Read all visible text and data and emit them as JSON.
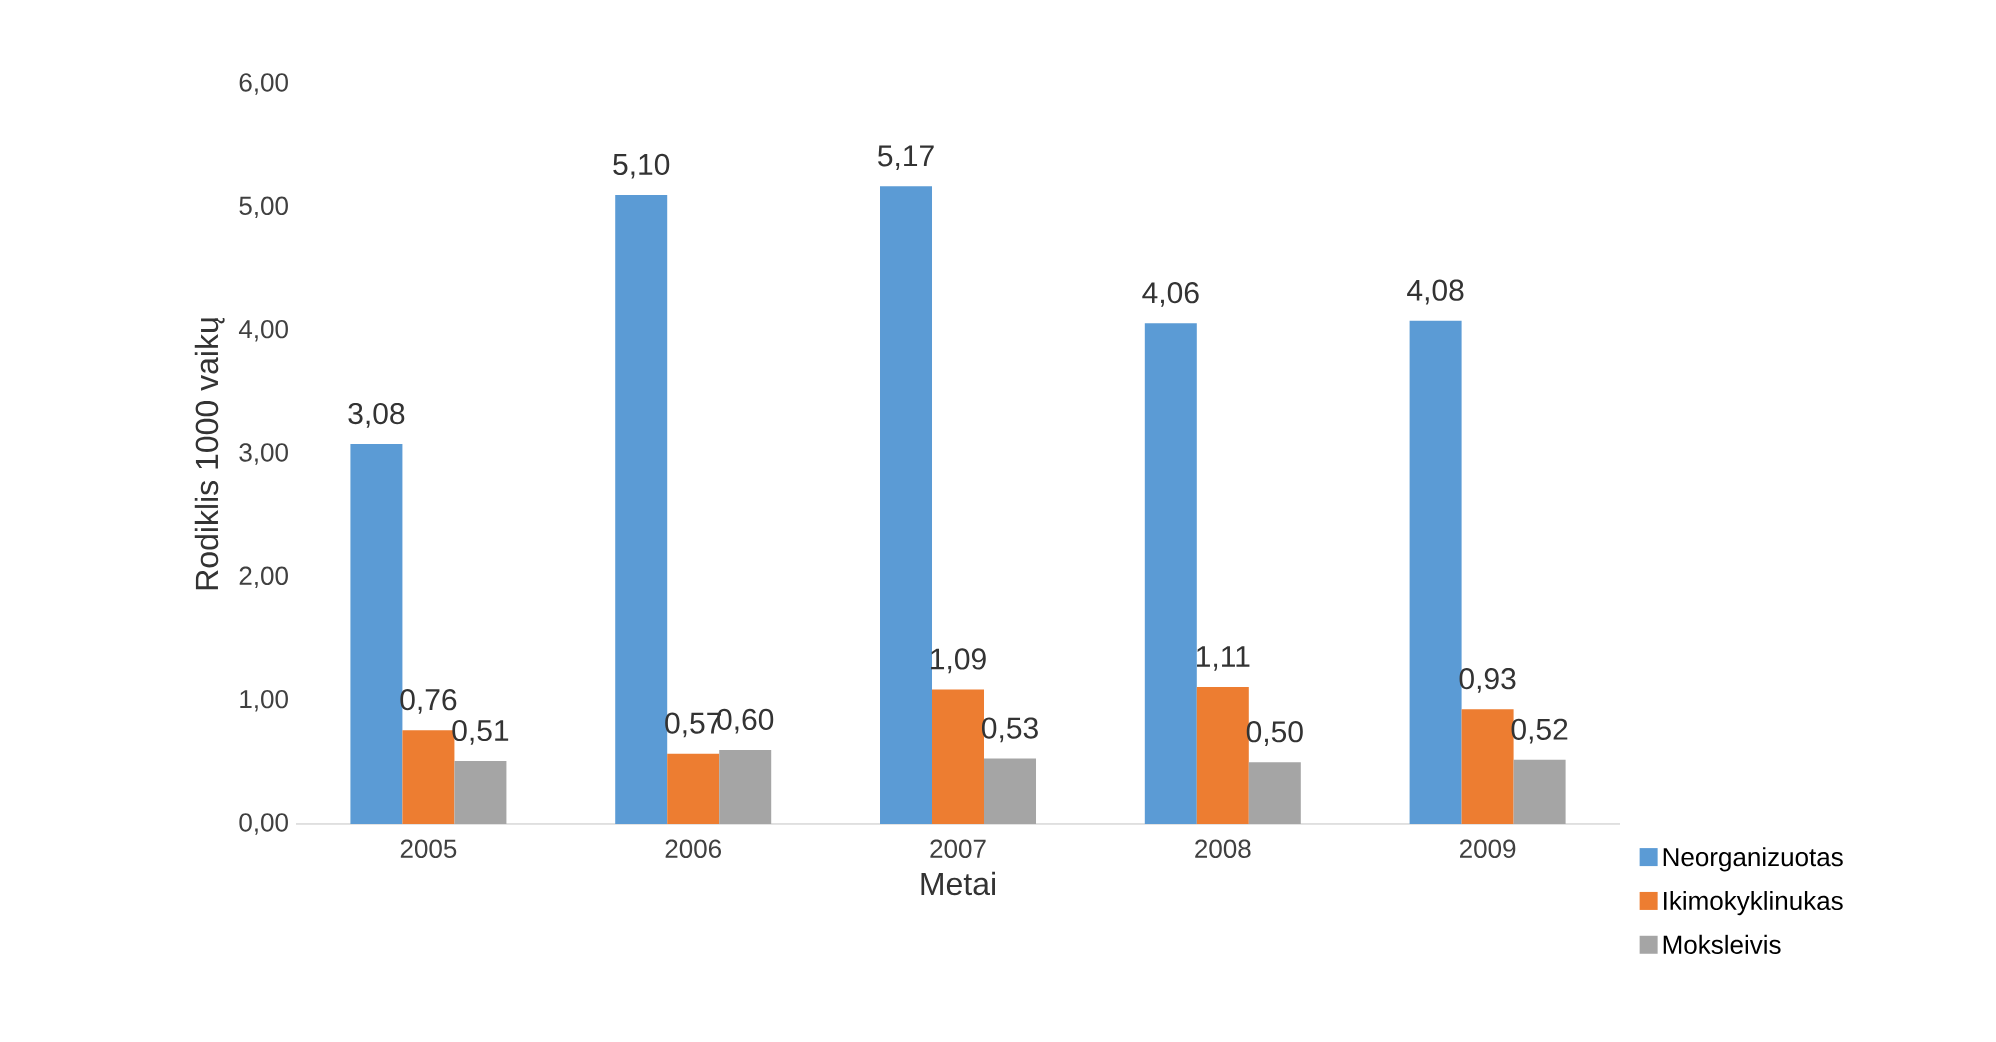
{
  "chart_data": {
    "type": "bar",
    "xlabel": "Metai",
    "ylabel": "Rodiklis 1000 vaikų",
    "categories": [
      "2005",
      "2006",
      "2007",
      "2008",
      "2009"
    ],
    "series": [
      {
        "name": "Neorganizuotas",
        "color": "#5b9bd5",
        "values": [
          3.08,
          5.1,
          5.17,
          4.06,
          4.08
        ],
        "value_labels": [
          "3,08",
          "5,10",
          "5,17",
          "4,06",
          "4,08"
        ]
      },
      {
        "name": "Ikimokyklinukas",
        "color": "#ed7d31",
        "values": [
          0.76,
          0.57,
          1.09,
          1.11,
          0.93
        ],
        "value_labels": [
          "0,76",
          "0,57",
          "1,09",
          "1,11",
          "0,93"
        ]
      },
      {
        "name": "Moksleivis",
        "color": "#a5a5a5",
        "values": [
          0.51,
          0.6,
          0.53,
          0.5,
          0.52
        ],
        "value_labels": [
          "0,51",
          "0,60",
          "0,53",
          "0,50",
          "0,52"
        ]
      }
    ],
    "ylim": [
      0,
      6
    ],
    "yticks": [
      {
        "value": 0,
        "label": "0,00"
      },
      {
        "value": 1,
        "label": "1,00"
      },
      {
        "value": 2,
        "label": "2,00"
      },
      {
        "value": 3,
        "label": "3,00"
      },
      {
        "value": 4,
        "label": "4,00"
      },
      {
        "value": 5,
        "label": "5,00"
      },
      {
        "value": 6,
        "label": "6,00"
      }
    ],
    "grid": false,
    "legend": "bottom right"
  }
}
